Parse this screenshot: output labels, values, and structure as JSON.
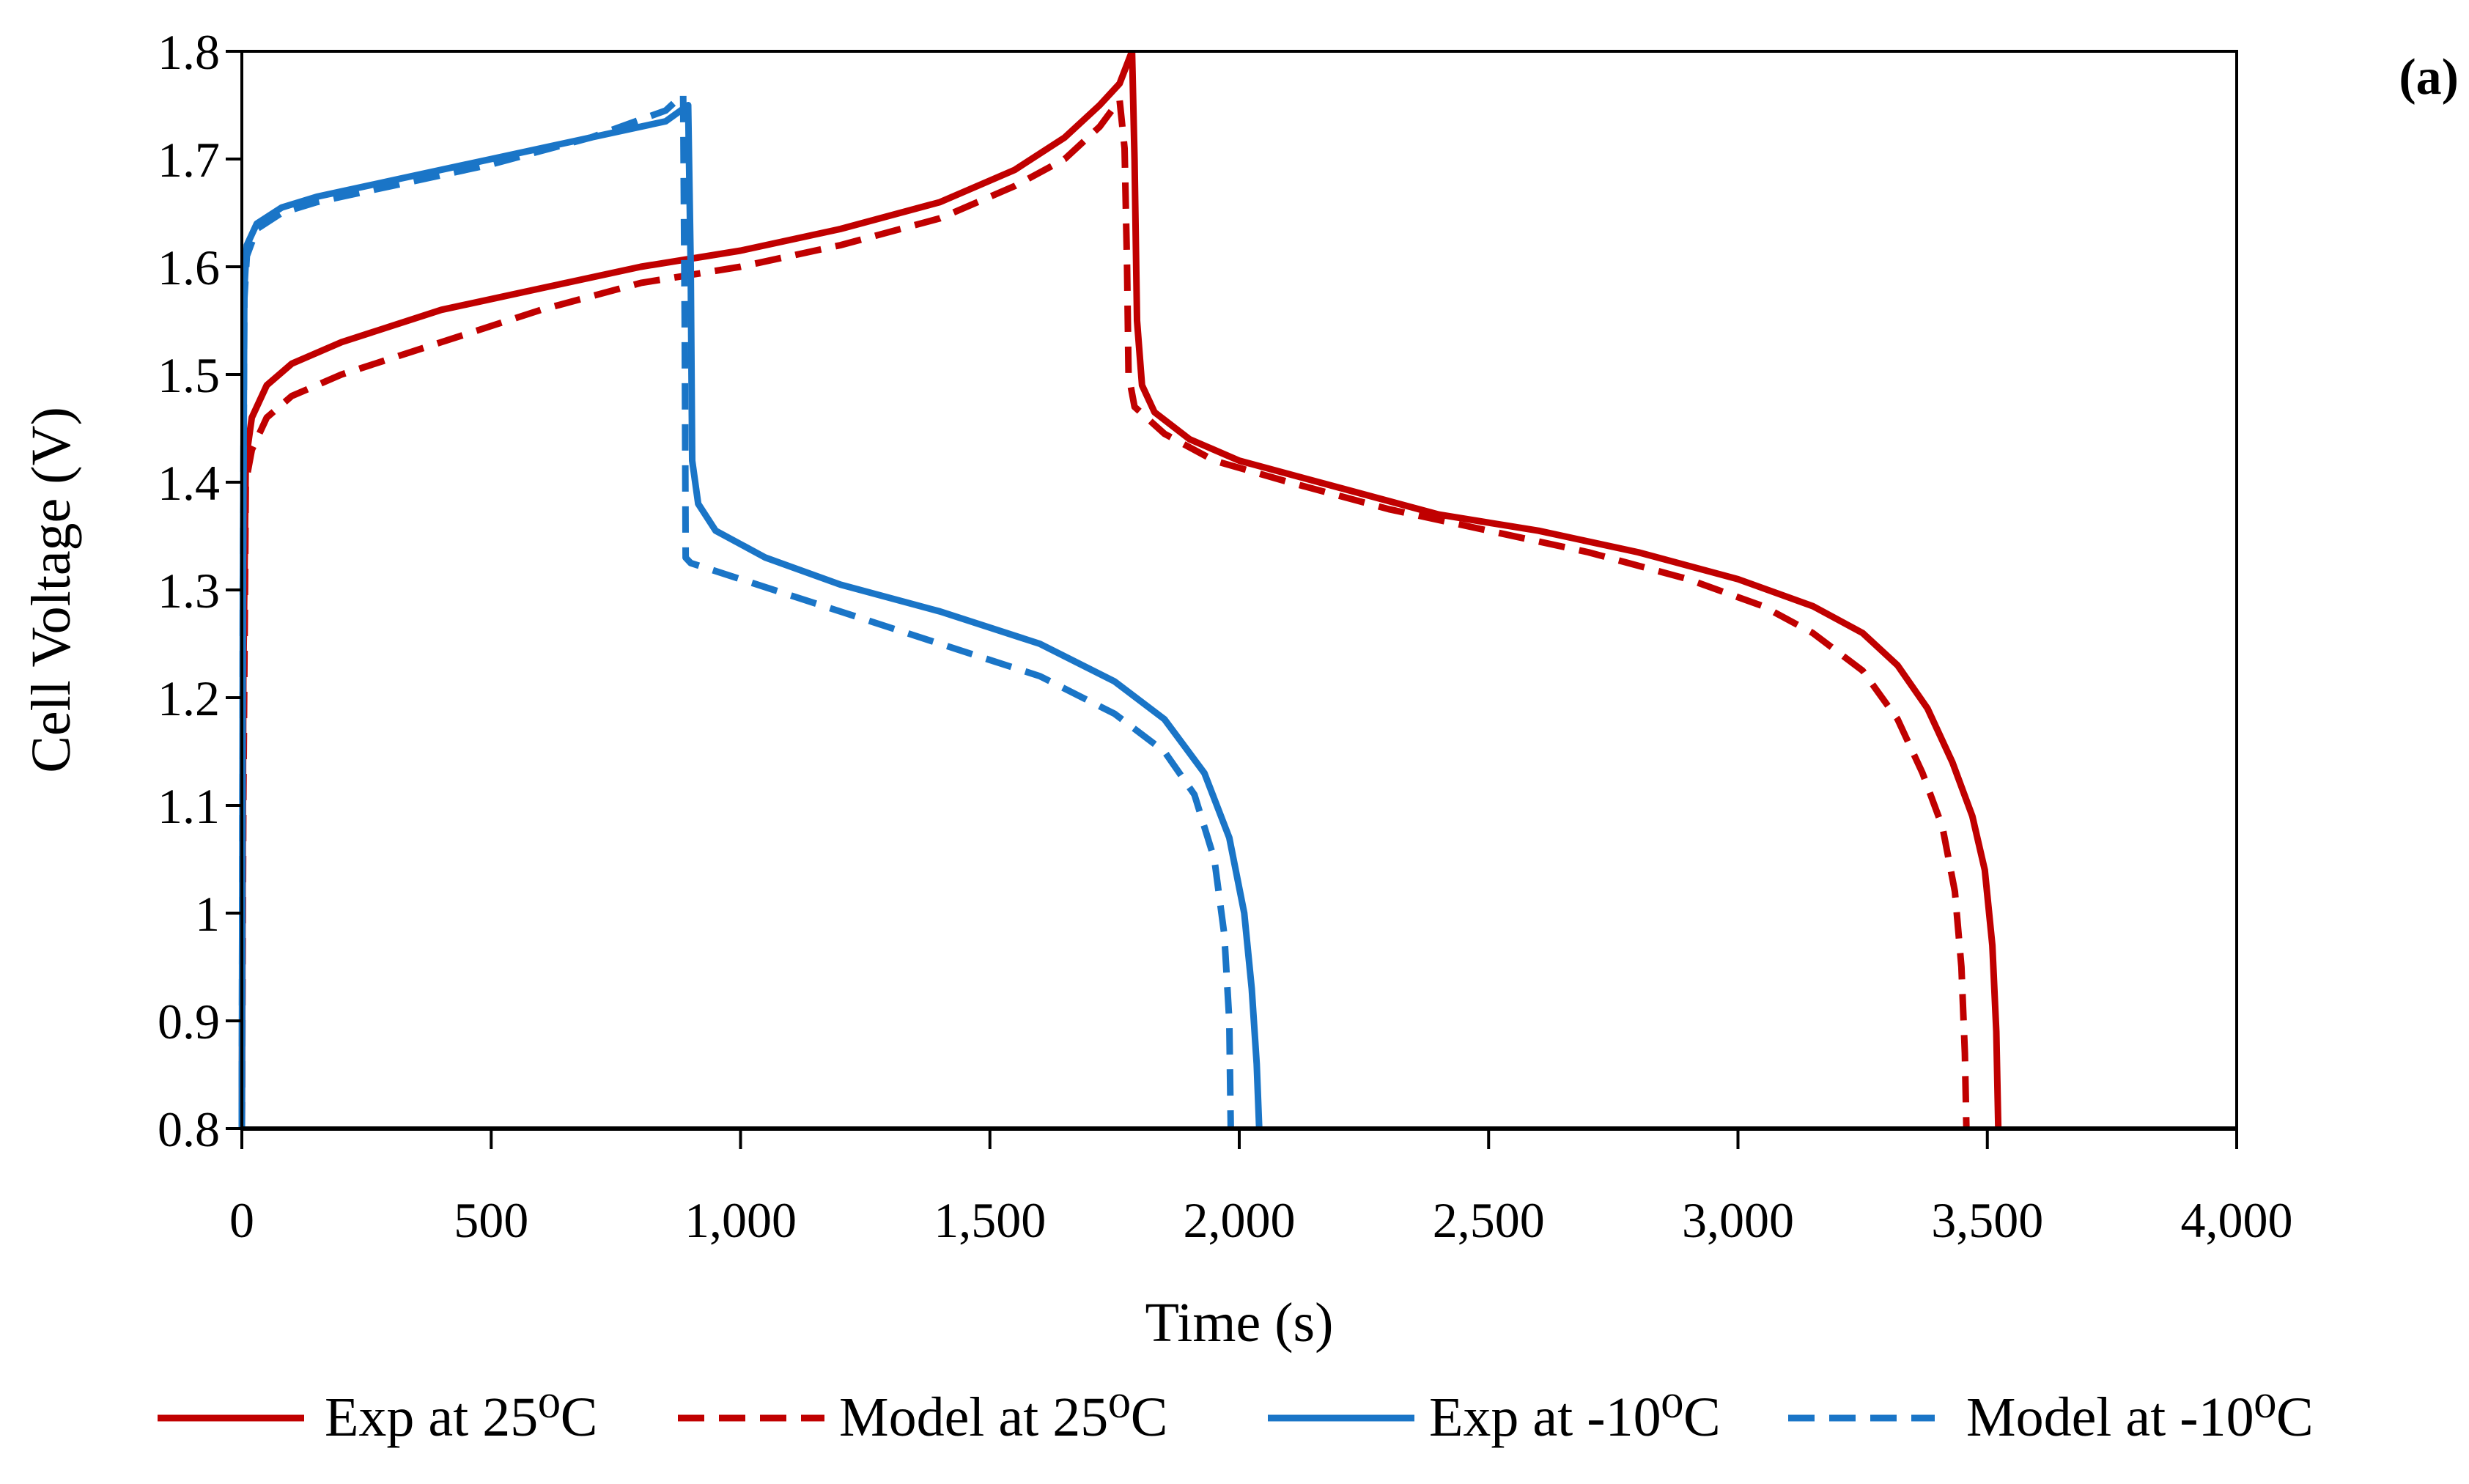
{
  "chart_data": {
    "type": "line",
    "panel_label": "(a)",
    "xlabel": "Time (s)",
    "ylabel": "Cell Voltage (V)",
    "xlim": [
      0,
      4000
    ],
    "ylim": [
      0.8,
      1.8
    ],
    "x_ticks": [
      0,
      500,
      1000,
      1500,
      2000,
      2500,
      3000,
      3500,
      4000
    ],
    "x_tick_labels": [
      "0",
      "500",
      "1,000",
      "1,500",
      "2,000",
      "2,500",
      "3,000",
      "3,500",
      "4,000"
    ],
    "y_ticks": [
      0.8,
      0.9,
      1.0,
      1.1,
      1.2,
      1.3,
      1.4,
      1.5,
      1.6,
      1.7,
      1.8
    ],
    "y_tick_labels": [
      "0.8",
      "0.9",
      "1",
      "1.1",
      "1.2",
      "1.3",
      "1.4",
      "1.5",
      "1.6",
      "1.7",
      "1.8"
    ],
    "grid": false,
    "legend_position": "bottom",
    "series": [
      {
        "name": "Exp at 25⁰C",
        "color": "#c00000",
        "dash": "solid",
        "points": [
          [
            0,
            0.8
          ],
          [
            3,
            1.22
          ],
          [
            8,
            1.42
          ],
          [
            20,
            1.46
          ],
          [
            50,
            1.49
          ],
          [
            100,
            1.51
          ],
          [
            200,
            1.53
          ],
          [
            400,
            1.56
          ],
          [
            600,
            1.58
          ],
          [
            800,
            1.6
          ],
          [
            1000,
            1.615
          ],
          [
            1200,
            1.635
          ],
          [
            1400,
            1.66
          ],
          [
            1550,
            1.69
          ],
          [
            1650,
            1.72
          ],
          [
            1720,
            1.75
          ],
          [
            1760,
            1.77
          ],
          [
            1785,
            1.8
          ],
          [
            1790,
            1.7
          ],
          [
            1795,
            1.55
          ],
          [
            1805,
            1.49
          ],
          [
            1830,
            1.465
          ],
          [
            1900,
            1.44
          ],
          [
            2000,
            1.42
          ],
          [
            2200,
            1.395
          ],
          [
            2400,
            1.37
          ],
          [
            2600,
            1.355
          ],
          [
            2800,
            1.335
          ],
          [
            3000,
            1.31
          ],
          [
            3150,
            1.285
          ],
          [
            3250,
            1.26
          ],
          [
            3320,
            1.23
          ],
          [
            3380,
            1.19
          ],
          [
            3430,
            1.14
          ],
          [
            3470,
            1.09
          ],
          [
            3495,
            1.04
          ],
          [
            3510,
            0.97
          ],
          [
            3518,
            0.89
          ],
          [
            3522,
            0.8
          ]
        ]
      },
      {
        "name": "Model at 25⁰C",
        "color": "#c00000",
        "dash": "dashed",
        "points": [
          [
            0,
            0.8
          ],
          [
            3,
            1.1
          ],
          [
            8,
            1.4
          ],
          [
            20,
            1.43
          ],
          [
            50,
            1.46
          ],
          [
            100,
            1.48
          ],
          [
            200,
            1.5
          ],
          [
            400,
            1.53
          ],
          [
            600,
            1.56
          ],
          [
            800,
            1.585
          ],
          [
            1000,
            1.6
          ],
          [
            1200,
            1.62
          ],
          [
            1400,
            1.645
          ],
          [
            1550,
            1.675
          ],
          [
            1650,
            1.7
          ],
          [
            1720,
            1.73
          ],
          [
            1760,
            1.755
          ],
          [
            1770,
            1.71
          ],
          [
            1775,
            1.6
          ],
          [
            1778,
            1.5
          ],
          [
            1790,
            1.47
          ],
          [
            1850,
            1.445
          ],
          [
            1950,
            1.42
          ],
          [
            2100,
            1.4
          ],
          [
            2300,
            1.375
          ],
          [
            2500,
            1.355
          ],
          [
            2700,
            1.335
          ],
          [
            2900,
            1.31
          ],
          [
            3050,
            1.285
          ],
          [
            3150,
            1.26
          ],
          [
            3250,
            1.225
          ],
          [
            3320,
            1.18
          ],
          [
            3370,
            1.13
          ],
          [
            3410,
            1.08
          ],
          [
            3435,
            1.02
          ],
          [
            3448,
            0.95
          ],
          [
            3455,
            0.87
          ],
          [
            3458,
            0.8
          ]
        ]
      },
      {
        "name": "Exp at -10⁰C",
        "color": "#1a75c7",
        "dash": "solid",
        "points": [
          [
            0,
            0.8
          ],
          [
            2,
            1.3
          ],
          [
            5,
            1.58
          ],
          [
            10,
            1.62
          ],
          [
            30,
            1.64
          ],
          [
            80,
            1.655
          ],
          [
            150,
            1.665
          ],
          [
            300,
            1.68
          ],
          [
            500,
            1.7
          ],
          [
            700,
            1.72
          ],
          [
            850,
            1.735
          ],
          [
            895,
            1.75
          ],
          [
            900,
            1.6
          ],
          [
            903,
            1.42
          ],
          [
            915,
            1.38
          ],
          [
            950,
            1.355
          ],
          [
            1050,
            1.33
          ],
          [
            1200,
            1.305
          ],
          [
            1400,
            1.28
          ],
          [
            1600,
            1.25
          ],
          [
            1750,
            1.215
          ],
          [
            1850,
            1.18
          ],
          [
            1930,
            1.13
          ],
          [
            1980,
            1.07
          ],
          [
            2010,
            1.0
          ],
          [
            2025,
            0.93
          ],
          [
            2035,
            0.86
          ],
          [
            2040,
            0.8
          ]
        ]
      },
      {
        "name": "Model at -10⁰C",
        "color": "#1a75c7",
        "dash": "dashed",
        "points": [
          [
            0,
            0.8
          ],
          [
            2,
            1.3
          ],
          [
            5,
            1.57
          ],
          [
            10,
            1.61
          ],
          [
            30,
            1.635
          ],
          [
            80,
            1.65
          ],
          [
            150,
            1.66
          ],
          [
            300,
            1.675
          ],
          [
            500,
            1.695
          ],
          [
            700,
            1.72
          ],
          [
            850,
            1.745
          ],
          [
            885,
            1.76
          ],
          [
            888,
            1.55
          ],
          [
            890,
            1.33
          ],
          [
            900,
            1.325
          ],
          [
            1000,
            1.31
          ],
          [
            1200,
            1.28
          ],
          [
            1400,
            1.25
          ],
          [
            1600,
            1.22
          ],
          [
            1750,
            1.185
          ],
          [
            1850,
            1.15
          ],
          [
            1910,
            1.11
          ],
          [
            1950,
            1.05
          ],
          [
            1970,
            0.98
          ],
          [
            1980,
            0.9
          ],
          [
            1983,
            0.8
          ]
        ]
      }
    ]
  }
}
